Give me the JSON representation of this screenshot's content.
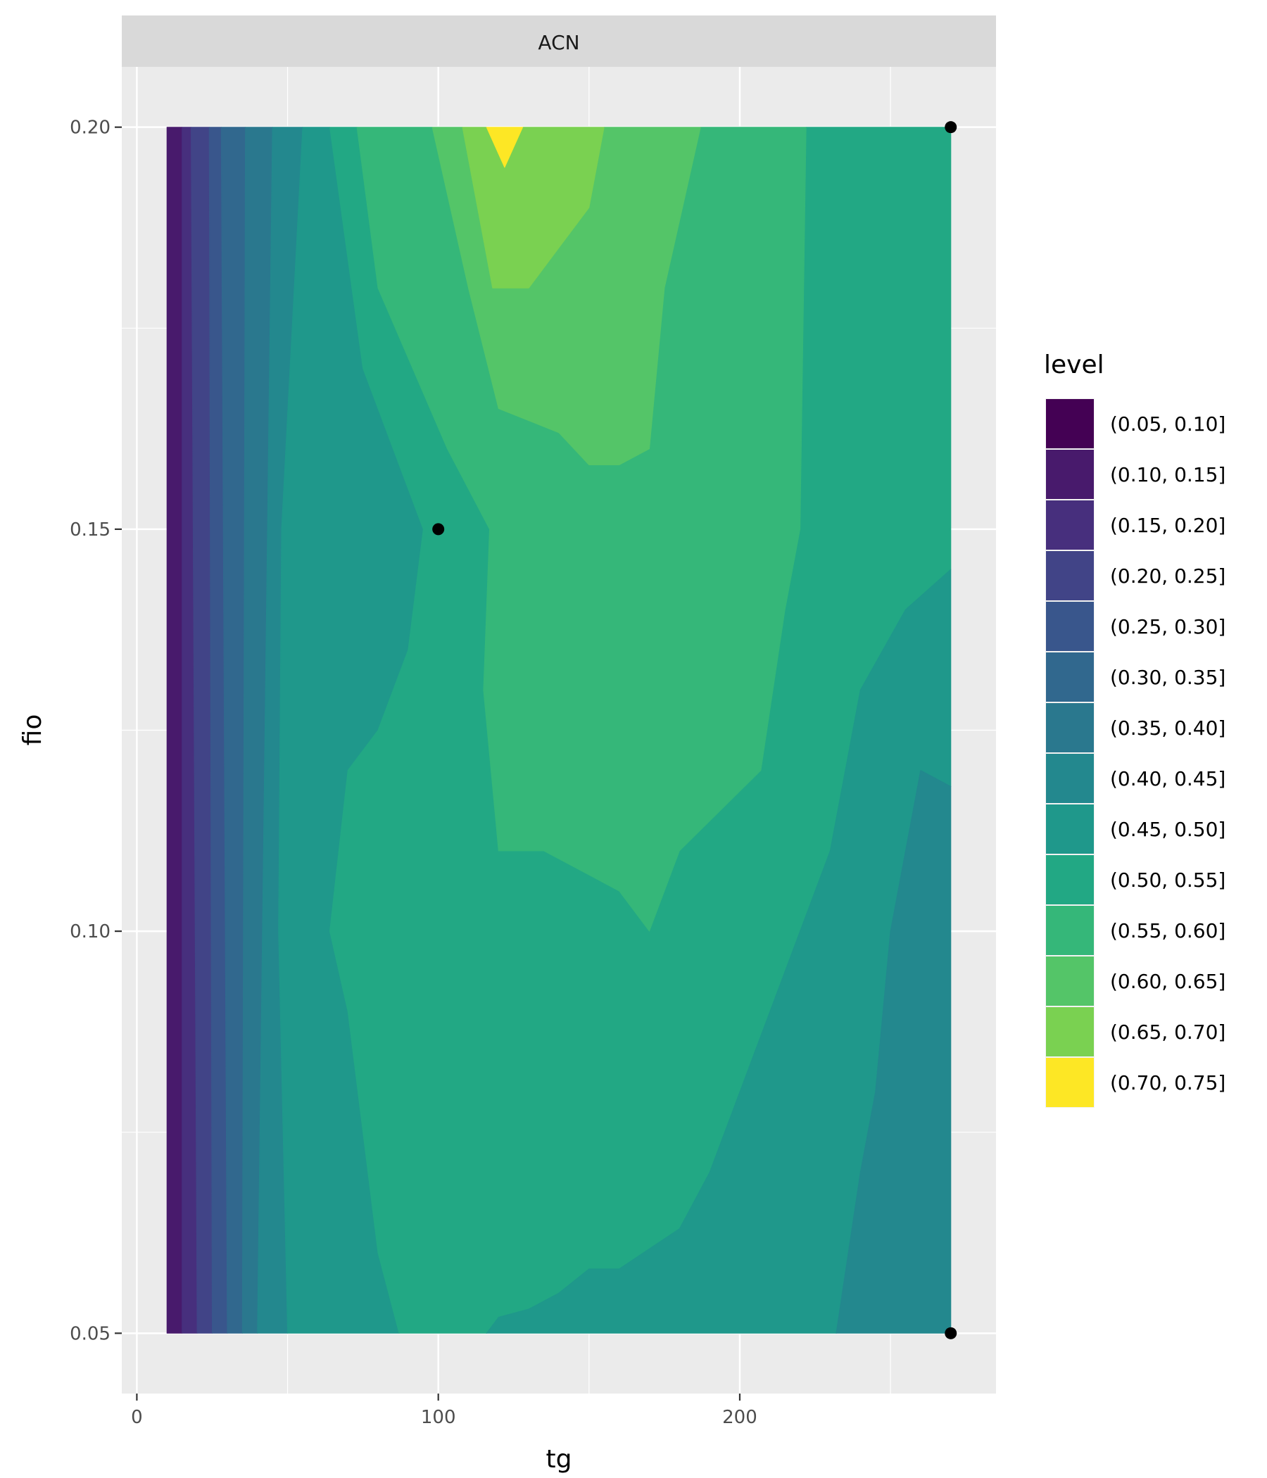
{
  "chart_data": {
    "type": "contour",
    "facet": "ACN",
    "xlabel": "tg",
    "ylabel": "fio",
    "xlim": [
      -5,
      285
    ],
    "ylim": [
      0.0425,
      0.2075
    ],
    "x_ticks": [
      0,
      100,
      200
    ],
    "x_tick_labels": [
      "0",
      "100",
      "200"
    ],
    "x_minor_ticks": [
      50,
      150,
      250
    ],
    "y_ticks": [
      0.05,
      0.1,
      0.15,
      0.2
    ],
    "y_tick_labels": [
      "0.05",
      "0.10",
      "0.15",
      "0.20"
    ],
    "y_minor_ticks": [
      0.075,
      0.125,
      0.175
    ],
    "grid": true,
    "legend": {
      "title": "level",
      "position": "right",
      "entries": [
        {
          "label": "(0.05, 0.10]",
          "color": "#440154"
        },
        {
          "label": "(0.10, 0.15]",
          "color": "#481a6c"
        },
        {
          "label": "(0.15, 0.20]",
          "color": "#472f7d"
        },
        {
          "label": "(0.20, 0.25]",
          "color": "#414487"
        },
        {
          "label": "(0.25, 0.30]",
          "color": "#39568c"
        },
        {
          "label": "(0.30, 0.35]",
          "color": "#31688e"
        },
        {
          "label": "(0.35, 0.40]",
          "color": "#2a788e"
        },
        {
          "label": "(0.40, 0.45]",
          "color": "#23888e"
        },
        {
          "label": "(0.45, 0.50]",
          "color": "#1f988b"
        },
        {
          "label": "(0.50, 0.55]",
          "color": "#22a884"
        },
        {
          "label": "(0.55, 0.60]",
          "color": "#35b779"
        },
        {
          "label": "(0.60, 0.65]",
          "color": "#54c568"
        },
        {
          "label": "(0.65, 0.70]",
          "color": "#7ad151"
        },
        {
          "label": "(0.70, 0.75]",
          "color": "#fde725"
        }
      ]
    },
    "points": [
      {
        "x": 100,
        "y": 0.15
      },
      {
        "x": 270,
        "y": 0.2
      },
      {
        "x": 270,
        "y": 0.05
      }
    ],
    "filled_region": {
      "x": [
        10,
        270
      ],
      "y": [
        0.05,
        0.2
      ]
    },
    "bands": [
      {
        "level": "(0.10, 0.15]",
        "polygon": [
          [
            10,
            0.05
          ],
          [
            15,
            0.05
          ],
          [
            15,
            0.2
          ],
          [
            10,
            0.2
          ]
        ]
      },
      {
        "level": "(0.15, 0.20]",
        "polygon": [
          [
            15,
            0.05
          ],
          [
            20,
            0.05
          ],
          [
            18,
            0.2
          ],
          [
            15,
            0.2
          ]
        ]
      },
      {
        "level": "(0.20, 0.25]",
        "polygon": [
          [
            20,
            0.05
          ],
          [
            25,
            0.05
          ],
          [
            24,
            0.2
          ],
          [
            18,
            0.2
          ]
        ]
      },
      {
        "level": "(0.25, 0.30]",
        "polygon": [
          [
            25,
            0.05
          ],
          [
            30,
            0.05
          ],
          [
            28,
            0.2
          ],
          [
            24,
            0.2
          ]
        ]
      },
      {
        "level": "(0.30, 0.35]",
        "polygon": [
          [
            30,
            0.05
          ],
          [
            35,
            0.05
          ],
          [
            36,
            0.2
          ],
          [
            28,
            0.2
          ]
        ]
      },
      {
        "level": "(0.35, 0.40]",
        "polygon": [
          [
            35,
            0.05
          ],
          [
            40,
            0.05
          ],
          [
            45,
            0.2
          ],
          [
            36,
            0.2
          ]
        ]
      },
      {
        "level": "(0.40, 0.45]",
        "polygon": [
          [
            40,
            0.05
          ],
          [
            50,
            0.05
          ],
          [
            47,
            0.1
          ],
          [
            48,
            0.15
          ],
          [
            55,
            0.2
          ],
          [
            45,
            0.2
          ]
        ]
      },
      {
        "level": "(0.45, 0.50]",
        "polygon": [
          [
            50,
            0.05
          ],
          [
            87,
            0.05
          ],
          [
            80,
            0.06
          ],
          [
            70,
            0.09
          ],
          [
            64,
            0.1
          ],
          [
            70,
            0.12
          ],
          [
            80,
            0.125
          ],
          [
            90,
            0.135
          ],
          [
            95,
            0.15
          ],
          [
            75,
            0.17
          ],
          [
            64,
            0.2
          ],
          [
            55,
            0.2
          ],
          [
            48,
            0.15
          ],
          [
            47,
            0.1
          ]
        ]
      },
      {
        "level": "(0.50, 0.55]",
        "polygon": [
          [
            87,
            0.05
          ],
          [
            116,
            0.05
          ],
          [
            130,
            0.053
          ],
          [
            160,
            0.058
          ],
          [
            180,
            0.063
          ],
          [
            190,
            0.07
          ],
          [
            210,
            0.09
          ],
          [
            230,
            0.11
          ],
          [
            240,
            0.13
          ],
          [
            255,
            0.14
          ],
          [
            270,
            0.145
          ],
          [
            270,
            0.2
          ],
          [
            222,
            0.2
          ],
          [
            220,
            0.15
          ],
          [
            215,
            0.14
          ],
          [
            207,
            0.12
          ],
          [
            180,
            0.11
          ],
          [
            170,
            0.1
          ],
          [
            160,
            0.105
          ],
          [
            150,
            0.107
          ],
          [
            135,
            0.11
          ],
          [
            120,
            0.11
          ],
          [
            115,
            0.13
          ],
          [
            117,
            0.15
          ],
          [
            103,
            0.16
          ],
          [
            80,
            0.18
          ],
          [
            73,
            0.2
          ],
          [
            64,
            0.2
          ],
          [
            75,
            0.17
          ],
          [
            95,
            0.15
          ],
          [
            90,
            0.135
          ],
          [
            80,
            0.125
          ],
          [
            70,
            0.12
          ],
          [
            64,
            0.1
          ],
          [
            70,
            0.09
          ],
          [
            80,
            0.06
          ]
        ]
      },
      {
        "level": "(0.55, 0.60]",
        "polygon": [
          [
            73,
            0.2
          ],
          [
            80,
            0.18
          ],
          [
            103,
            0.16
          ],
          [
            117,
            0.15
          ],
          [
            115,
            0.13
          ],
          [
            120,
            0.11
          ],
          [
            135,
            0.11
          ],
          [
            150,
            0.107
          ],
          [
            160,
            0.105
          ],
          [
            170,
            0.1
          ],
          [
            180,
            0.11
          ],
          [
            207,
            0.12
          ],
          [
            215,
            0.14
          ],
          [
            220,
            0.15
          ],
          [
            222,
            0.2
          ],
          [
            187,
            0.2
          ],
          [
            175,
            0.18
          ],
          [
            170,
            0.16
          ],
          [
            160,
            0.158
          ],
          [
            150,
            0.158
          ],
          [
            140,
            0.162
          ],
          [
            120,
            0.165
          ],
          [
            110,
            0.18
          ],
          [
            98,
            0.2
          ],
          [
            87,
            0.2
          ]
        ]
      },
      {
        "level": "(0.60, 0.65]",
        "polygon": [
          [
            98,
            0.2
          ],
          [
            110,
            0.18
          ],
          [
            120,
            0.165
          ],
          [
            140,
            0.162
          ],
          [
            150,
            0.158
          ],
          [
            160,
            0.158
          ],
          [
            170,
            0.16
          ],
          [
            175,
            0.18
          ],
          [
            187,
            0.2
          ],
          [
            155,
            0.2
          ],
          [
            150,
            0.19
          ],
          [
            140,
            0.185
          ],
          [
            130,
            0.18
          ],
          [
            118,
            0.18
          ],
          [
            108,
            0.2
          ]
        ]
      },
      {
        "level": "(0.65, 0.70]",
        "polygon": [
          [
            108,
            0.2
          ],
          [
            118,
            0.18
          ],
          [
            130,
            0.18
          ],
          [
            140,
            0.185
          ],
          [
            150,
            0.19
          ],
          [
            155,
            0.2
          ],
          [
            128,
            0.2
          ],
          [
            122,
            0.195
          ],
          [
            116,
            0.2
          ]
        ]
      },
      {
        "level": "(0.70, 0.75]",
        "polygon": [
          [
            116,
            0.2
          ],
          [
            122,
            0.195
          ],
          [
            128,
            0.2
          ]
        ]
      },
      {
        "level": "(0.45, 0.50]",
        "polygon": [
          [
            116,
            0.05
          ],
          [
            232,
            0.05
          ],
          [
            240,
            0.07
          ],
          [
            245,
            0.08
          ],
          [
            250,
            0.1
          ],
          [
            260,
            0.12
          ],
          [
            270,
            0.118
          ],
          [
            270,
            0.145
          ],
          [
            255,
            0.14
          ],
          [
            240,
            0.13
          ],
          [
            230,
            0.11
          ],
          [
            210,
            0.09
          ],
          [
            190,
            0.07
          ],
          [
            180,
            0.063
          ],
          [
            160,
            0.058
          ],
          [
            150,
            0.058
          ],
          [
            140,
            0.055
          ],
          [
            130,
            0.053
          ],
          [
            120,
            0.052
          ]
        ]
      },
      {
        "level": "(0.40, 0.45]",
        "polygon": [
          [
            232,
            0.05
          ],
          [
            270,
            0.05
          ],
          [
            270,
            0.118
          ],
          [
            260,
            0.12
          ],
          [
            250,
            0.1
          ],
          [
            245,
            0.08
          ],
          [
            240,
            0.07
          ]
        ]
      }
    ]
  }
}
